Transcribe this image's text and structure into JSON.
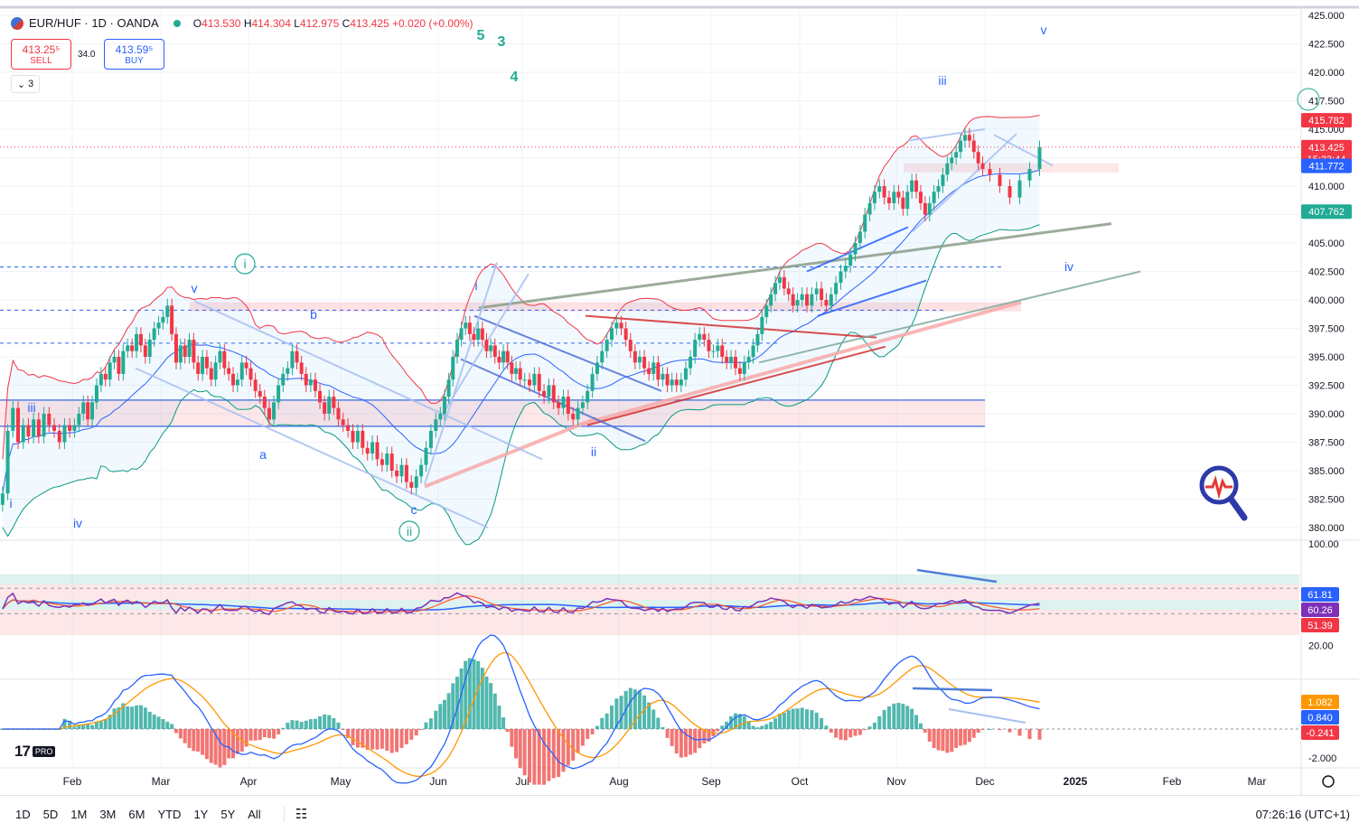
{
  "header": {
    "symbol": "EUR/HUF · 1D · OANDA",
    "ohlc": {
      "o_label": "O",
      "o": "413.530",
      "h_label": "H",
      "h": "414.304",
      "l_label": "L",
      "l": "412.975",
      "c_label": "C",
      "c": "413.425",
      "change": "+0.020 (+0.00%)"
    }
  },
  "trade": {
    "sell_price": "413.25⁵",
    "sell_label": "SELL",
    "spread": "34.0",
    "buy_price": "413.59⁵",
    "buy_label": "BUY"
  },
  "collapse": {
    "label": "3",
    "icon": "chevron-down-icon"
  },
  "bottom": {
    "ranges": [
      "1D",
      "5D",
      "1M",
      "3M",
      "6M",
      "YTD",
      "1Y",
      "5Y",
      "All"
    ],
    "calendar_icon": "calendar-range-icon",
    "clock": "07:26:16 (UTC+1)"
  },
  "logo": {
    "pro": "PRO"
  },
  "colors": {
    "up": "#22ab94",
    "down": "#f23645",
    "rsi": "#7e30b8",
    "ma_blue": "#2962ff",
    "macd_orange": "#ff9800"
  },
  "chart_data": [
    {
      "type": "candlestick",
      "pane": "price",
      "x_months": [
        "Feb",
        "Mar",
        "Apr",
        "May",
        "Jun",
        "Jul",
        "Aug",
        "Sep",
        "Oct",
        "Nov",
        "Dec",
        "2025",
        "Feb",
        "Mar"
      ],
      "y_ticks": [
        "425.000",
        "422.500",
        "420.000",
        "417.500",
        "415.000",
        "412.500",
        "410.000",
        "407.500",
        "405.000",
        "402.500",
        "400.000",
        "397.500",
        "395.000",
        "392.500",
        "390.000",
        "387.500",
        "385.000",
        "382.500",
        "380.000"
      ],
      "ylim": [
        379.0,
        425.5
      ],
      "price_labels": [
        {
          "value": 415.782,
          "text": "415.782",
          "color": "#f23645"
        },
        {
          "value": 413.425,
          "text": "413.425",
          "sub": "15:33:44",
          "color": "#f23645"
        },
        {
          "value": 411.772,
          "text": "411.772",
          "color": "#2962ff"
        },
        {
          "value": 407.762,
          "text": "407.762",
          "color": "#22ab94"
        }
      ],
      "closes_by_month": {
        "Jan": [
          383.0,
          388.5,
          390.5,
          387.5,
          389.0,
          388.0,
          389.5,
          388.0,
          390.0,
          389.0,
          388.5,
          387.5,
          389.0,
          388.5
        ],
        "Feb": [
          389.0,
          390.0,
          391.0,
          389.5,
          391.0,
          392.5,
          393.5,
          393.0,
          394.5,
          395.0,
          393.5,
          395.5,
          396.0,
          395.5,
          397.0,
          396.0,
          395.0,
          396.5,
          397.5,
          398.0
        ],
        "Mar": [
          398.5,
          399.5,
          397.0,
          394.5,
          396.0,
          395.0,
          396.5,
          394.5,
          393.5,
          395.0,
          394.0,
          393.0,
          394.5,
          395.5,
          394.0,
          393.5,
          392.5,
          393.0,
          394.5,
          394.0
        ],
        "Apr": [
          393.0,
          392.0,
          391.5,
          390.5,
          389.5,
          391.0,
          392.5,
          393.5,
          394.0,
          395.5,
          394.5,
          393.5,
          392.5,
          393.0,
          392.0,
          391.0,
          390.0,
          391.5,
          390.5,
          389.5
        ],
        "May": [
          389.0,
          388.5,
          387.5,
          388.5,
          387.0,
          386.5,
          387.5,
          386.0,
          385.5,
          386.5,
          385.0,
          384.5,
          385.5,
          384.0,
          383.5,
          384.5,
          385.5,
          387.0,
          388.5,
          389.5
        ],
        "Jun": [
          390.0,
          391.5,
          393.0,
          395.0,
          396.5,
          397.5,
          398.0,
          397.0,
          396.5,
          397.5,
          396.5,
          395.5,
          396.0,
          395.0,
          394.5,
          395.5,
          394.5,
          393.5,
          394.0,
          393.0
        ],
        "Jul": [
          393.0,
          392.5,
          393.5,
          392.0,
          391.5,
          392.5,
          391.0,
          390.5,
          391.5,
          390.0,
          389.5,
          390.5,
          391.0,
          392.0,
          393.5,
          394.5,
          395.5,
          396.5,
          397.5,
          398.0
        ],
        "Aug": [
          397.5,
          396.5,
          395.5,
          394.5,
          395.0,
          394.0,
          393.5,
          394.5,
          393.0,
          393.5,
          392.5,
          393.0,
          392.5,
          393.0,
          394.0,
          395.0,
          396.5,
          397.0,
          396.5,
          395.5
        ],
        "Sep": [
          395.5,
          396.0,
          395.0,
          394.5,
          395.0,
          394.0,
          393.5,
          394.5,
          395.0,
          396.0,
          397.0,
          398.5,
          399.5,
          400.5,
          401.5,
          402.0,
          401.0,
          400.5,
          399.5,
          400.0
        ],
        "Oct": [
          400.5,
          399.5,
          400.5,
          401.0,
          400.0,
          399.5,
          400.5,
          401.5,
          402.5,
          403.0,
          404.0,
          405.0,
          406.0,
          407.5,
          408.5,
          409.5,
          410.0,
          409.0,
          408.5,
          409.5
        ],
        "Nov": [
          409.0,
          408.0,
          409.5,
          410.5,
          409.5,
          408.5,
          407.5,
          408.5,
          409.5,
          410.0,
          411.0,
          412.0,
          412.5,
          413.0,
          414.0,
          414.5,
          414.0,
          413.0,
          412.0,
          411.5
        ],
        "Dec": [
          411.0,
          410.0,
          409.0,
          410.5,
          411.5,
          413.4
        ]
      }
    },
    {
      "type": "line",
      "pane": "rsi",
      "y_ticks": [
        "100.00",
        "20.00"
      ],
      "ylim": [
        0,
        100
      ],
      "labels": [
        {
          "value": 61.81,
          "text": "61.81",
          "color": "#2962ff"
        },
        {
          "value": 60.26,
          "text": "60.26",
          "color": "#7e30b8"
        },
        {
          "value": 51.39,
          "text": "51.39",
          "color": "#f23645"
        }
      ]
    },
    {
      "type": "bar",
      "pane": "macd",
      "y_ticks": [
        "-2.000"
      ],
      "labels": [
        {
          "value": 1.082,
          "text": "1.082",
          "color": "#ff9800"
        },
        {
          "value": 0.84,
          "text": "0.840",
          "color": "#2962ff"
        },
        {
          "value": -0.241,
          "text": "-0.241",
          "color": "#f23645"
        }
      ]
    }
  ],
  "annotations": [
    {
      "text": "5",
      "color": "#22ab94"
    },
    {
      "text": "3",
      "color": "#22ab94"
    },
    {
      "text": "4",
      "color": "#22ab94"
    },
    {
      "text": "v",
      "color": "#2962ff"
    },
    {
      "text": "iii",
      "color": "#2962ff"
    },
    {
      "text": "iv",
      "color": "#2962ff"
    },
    {
      "text": "i",
      "color": "#22ab94",
      "circled": true
    },
    {
      "text": "v",
      "color": "#2962ff"
    },
    {
      "text": "b",
      "color": "#2962ff"
    },
    {
      "text": "i",
      "color": "#2962ff"
    },
    {
      "text": "iii",
      "color": "#2962ff"
    },
    {
      "text": "a",
      "color": "#2962ff"
    },
    {
      "text": "ii",
      "color": "#2962ff"
    },
    {
      "text": "c",
      "color": "#2962ff"
    },
    {
      "text": "ii",
      "color": "#22ab94",
      "circled": true
    },
    {
      "text": "i",
      "color": "#2962ff"
    },
    {
      "text": "iv",
      "color": "#2962ff"
    }
  ]
}
